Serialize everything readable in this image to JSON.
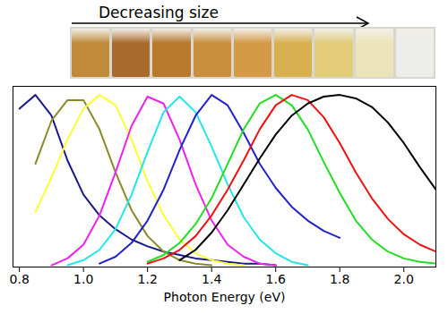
{
  "chart_data": {
    "type": "line",
    "annotation": "Decreasing size",
    "xlabel": "Photon Energy (eV)",
    "x": [
      0.8,
      0.85,
      0.9,
      0.95,
      1.0,
      1.05,
      1.1,
      1.15,
      1.2,
      1.25,
      1.3,
      1.35,
      1.4,
      1.45,
      1.5,
      1.55,
      1.6,
      1.65,
      1.7,
      1.75,
      1.8,
      1.85,
      1.9,
      1.95,
      2.0,
      2.05,
      2.1
    ],
    "series": [
      {
        "color": "#1a1a8c",
        "values": [
          0.92,
          1.0,
          0.88,
          0.62,
          0.42,
          0.3,
          0.22,
          0.16,
          0.12,
          0.09,
          0.07,
          0.05,
          0.04,
          0.03,
          0.02,
          0.02,
          0.01,
          null,
          null,
          null,
          null,
          null,
          null,
          null,
          null,
          null,
          null
        ]
      },
      {
        "color": "#8a8a2a",
        "values": [
          null,
          0.6,
          0.85,
          0.97,
          0.97,
          0.8,
          0.55,
          0.33,
          0.18,
          0.09,
          0.04,
          0.02,
          0.01,
          null,
          null,
          null,
          null,
          null,
          null,
          null,
          null,
          null,
          null,
          null,
          null,
          null,
          null
        ]
      },
      {
        "color": "#ffff33",
        "values": [
          null,
          0.32,
          0.52,
          0.74,
          0.92,
          1.0,
          0.94,
          0.74,
          0.5,
          0.3,
          0.16,
          0.08,
          0.04,
          0.02,
          0.01,
          null,
          null,
          null,
          null,
          null,
          null,
          null,
          null,
          null,
          null,
          null,
          null
        ]
      },
      {
        "color": "#ee22ee",
        "values": [
          null,
          null,
          0.01,
          0.05,
          0.13,
          0.3,
          0.55,
          0.82,
          0.99,
          0.95,
          0.74,
          0.48,
          0.27,
          0.13,
          0.06,
          0.02,
          0.01,
          null,
          null,
          null,
          null,
          null,
          null,
          null,
          null,
          null,
          null
        ]
      },
      {
        "color": "#22e6e6",
        "values": [
          null,
          null,
          null,
          0.01,
          0.04,
          0.1,
          0.22,
          0.42,
          0.67,
          0.9,
          0.99,
          0.9,
          0.7,
          0.48,
          0.29,
          0.16,
          0.08,
          0.03,
          0.01,
          null,
          null,
          null,
          null,
          null,
          null,
          null,
          null
        ]
      },
      {
        "color": "#2222cc",
        "values": [
          null,
          null,
          null,
          null,
          null,
          0.02,
          0.06,
          0.14,
          0.27,
          0.45,
          0.68,
          0.88,
          1.0,
          0.94,
          0.78,
          0.6,
          0.46,
          0.35,
          0.27,
          0.21,
          0.17,
          null,
          null,
          null,
          null,
          null,
          null
        ]
      },
      {
        "color": "#22dd22",
        "values": [
          null,
          null,
          null,
          null,
          null,
          null,
          null,
          null,
          0.03,
          0.07,
          0.14,
          0.25,
          0.4,
          0.6,
          0.8,
          0.95,
          1.0,
          0.94,
          0.8,
          0.61,
          0.43,
          0.27,
          0.16,
          0.09,
          0.05,
          0.03,
          0.02
        ]
      },
      {
        "color": "#ee1111",
        "values": [
          null,
          null,
          null,
          null,
          null,
          null,
          null,
          null,
          0.02,
          0.05,
          0.1,
          0.18,
          0.3,
          0.45,
          0.62,
          0.8,
          0.94,
          1.0,
          0.97,
          0.87,
          0.72,
          0.55,
          0.4,
          0.28,
          0.19,
          0.13,
          0.09
        ]
      },
      {
        "color": "#000000",
        "values": [
          null,
          null,
          null,
          null,
          null,
          null,
          null,
          null,
          null,
          null,
          0.04,
          0.1,
          0.2,
          0.33,
          0.48,
          0.63,
          0.77,
          0.88,
          0.95,
          0.99,
          1.0,
          0.98,
          0.93,
          0.84,
          0.72,
          0.58,
          0.45
        ]
      }
    ],
    "xlim": [
      0.78,
      2.1
    ],
    "xticks": [
      0.8,
      {
        "value": 1,
        "label": "1.0"
      },
      1.2,
      1.4,
      1.6,
      1.8,
      {
        "value": 2,
        "label": "2.0"
      }
    ],
    "ylim": [
      0,
      1.05
    ],
    "tick_labels": "x",
    "grid": false
  }
}
